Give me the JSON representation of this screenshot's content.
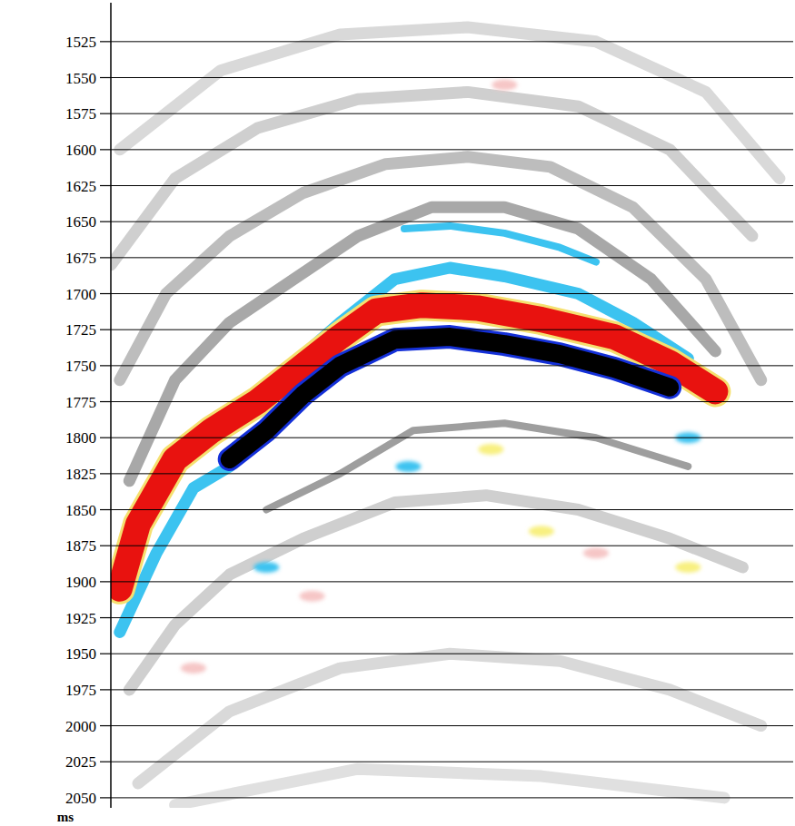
{
  "chart_data": {
    "type": "seismic",
    "y_label": "ms",
    "xlim": [
      0,
      100
    ],
    "ylim": [
      1498,
      2057
    ],
    "yticks": [
      1525,
      1550,
      1575,
      1600,
      1625,
      1650,
      1675,
      1700,
      1725,
      1750,
      1775,
      1800,
      1825,
      1850,
      1875,
      1900,
      1925,
      1950,
      1975,
      2000,
      2025,
      2050
    ],
    "grid": true,
    "tick_labels": "y",
    "series": [
      {
        "type": "line",
        "color": "#d9d9d9",
        "line_style": "medium",
        "x": [
          1.3,
          16.1,
          33.6,
          52.3,
          71.1,
          87.2,
          98.0
        ],
        "values": [
          1600,
          1545,
          1520,
          1515,
          1525,
          1560,
          1620
        ]
      },
      {
        "type": "line",
        "color": "#cfcfcf",
        "line_style": "medium",
        "x": [
          0,
          9.4,
          21.5,
          36.2,
          52.3,
          68.5,
          81.9,
          94.0
        ],
        "values": [
          1680,
          1620,
          1585,
          1565,
          1560,
          1570,
          1600,
          1660
        ]
      },
      {
        "type": "line",
        "color": "#bdbdbd",
        "line_style": "medium",
        "x": [
          1.3,
          8.1,
          17.4,
          28.2,
          40.3,
          52.3,
          64.4,
          76.5,
          87.2,
          95.3
        ],
        "values": [
          1760,
          1700,
          1660,
          1630,
          1610,
          1605,
          1612,
          1640,
          1690,
          1760
        ]
      },
      {
        "type": "line",
        "color": "#a8a8a8",
        "line_style": "medium",
        "x": [
          2.7,
          9.4,
          17.4,
          26.8,
          36.2,
          47.0,
          57.7,
          68.5,
          79.2,
          88.6
        ],
        "values": [
          1830,
          1760,
          1720,
          1690,
          1660,
          1640,
          1640,
          1655,
          1690,
          1740
        ]
      },
      {
        "type": "line",
        "color": "#cfcfcf",
        "line_style": "medium",
        "x": [
          2.7,
          9.4,
          17.4,
          28.2,
          41.6,
          55.0,
          68.5,
          81.9,
          92.6
        ],
        "values": [
          1975,
          1930,
          1895,
          1870,
          1845,
          1840,
          1850,
          1870,
          1890
        ]
      },
      {
        "type": "line",
        "color": "#d9d9d9",
        "line_style": "medium",
        "x": [
          4.0,
          17.4,
          33.6,
          49.7,
          65.8,
          81.9,
          95.3
        ],
        "values": [
          2040,
          1990,
          1960,
          1950,
          1955,
          1975,
          2000
        ]
      },
      {
        "type": "line",
        "color": "#e0e0e0",
        "line_style": "medium",
        "x": [
          9.4,
          36.2,
          63.1,
          89.9
        ],
        "values": [
          2055,
          2030,
          2035,
          2050
        ]
      },
      {
        "type": "line",
        "color": "#9e9e9e",
        "line_style": "thin",
        "x": [
          22.8,
          33.6,
          44.3,
          57.7,
          71.1,
          84.6
        ],
        "values": [
          1850,
          1825,
          1795,
          1790,
          1800,
          1820
        ]
      },
      {
        "type": "line",
        "color": "#3cc3f0",
        "line_style": "thin",
        "x": [
          43.0,
          49.7,
          57.7,
          65.8,
          71.1
        ],
        "values": [
          1655,
          1653,
          1658,
          1668,
          1678
        ]
      },
      {
        "type": "line",
        "color": "#3cc3f0",
        "line_style": "medium",
        "x": [
          22.8,
          33.6,
          41.6,
          49.7,
          57.7,
          68.5,
          76.5,
          84.6
        ],
        "values": [
          1765,
          1720,
          1690,
          1682,
          1688,
          1700,
          1720,
          1745
        ]
      },
      {
        "type": "line",
        "color": "#3cc3f0",
        "line_style": "medium",
        "x": [
          1.3,
          6.7,
          12.1,
          17.4
        ],
        "values": [
          1935,
          1880,
          1835,
          1820
        ]
      },
      {
        "type": "line",
        "color": "#e8120f",
        "line_style": "thick",
        "x": [
          1.3,
          4.0,
          9.4,
          14.8,
          21.5,
          28.2,
          33.6,
          38.9,
          45.6,
          53.7,
          63.1,
          73.8,
          81.9,
          88.6
        ],
        "values": [
          1905,
          1860,
          1815,
          1795,
          1775,
          1750,
          1730,
          1712,
          1708,
          1710,
          1718,
          1730,
          1748,
          1768
        ]
      },
      {
        "type": "line",
        "color": "#000000",
        "line_style": "wide",
        "x": [
          17.4,
          22.8,
          28.2,
          33.6,
          41.6,
          49.7,
          57.7,
          65.8,
          73.8,
          81.9
        ],
        "values": [
          1815,
          1795,
          1770,
          1750,
          1732,
          1730,
          1735,
          1742,
          1752,
          1765
        ]
      },
      {
        "type": "scatter",
        "marker": "blob",
        "color": "#f8f080",
        "x": [
          55.7,
          63.1,
          84.6
        ],
        "values": [
          1808,
          1865,
          1890
        ]
      },
      {
        "type": "scatter",
        "marker": "blob",
        "color": "#f6c6c6",
        "x": [
          12.1,
          29.5,
          57.7,
          71.1
        ],
        "values": [
          1960,
          1910,
          1555,
          1880
        ]
      },
      {
        "type": "scatter",
        "marker": "blob",
        "color": "#3cc3f0",
        "x": [
          22.8,
          43.6,
          84.6
        ],
        "values": [
          1890,
          1820,
          1800
        ]
      }
    ]
  }
}
